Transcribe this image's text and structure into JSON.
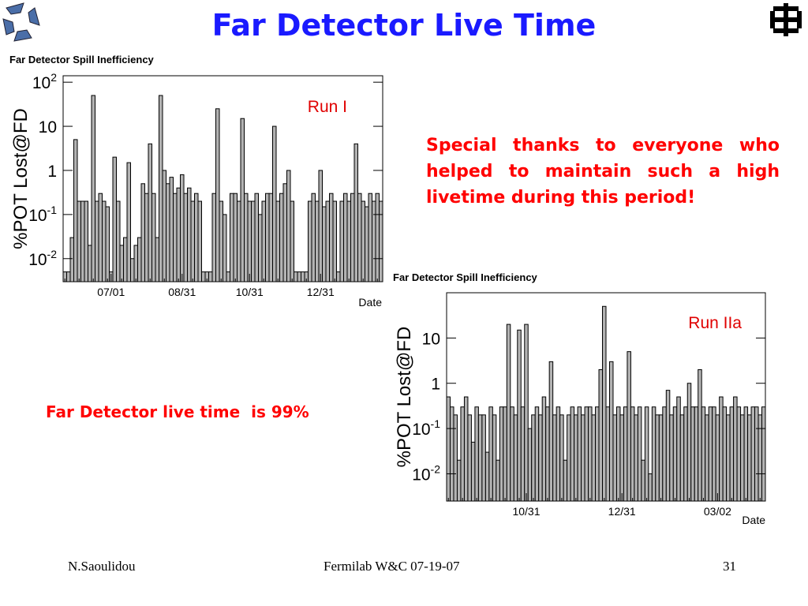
{
  "header": {
    "title": "Far Detector Live Time"
  },
  "notes": {
    "thanks": "Special thanks to everyone who helped to maintain such a high livetime during this period!",
    "livetime": "Far Detector live time  is 99%"
  },
  "footer": {
    "author": "N.Saoulidou",
    "event": "Fermilab W&C  07-19-07",
    "page": "31"
  },
  "chart_data": [
    {
      "type": "bar",
      "title": "Far Detector Spill Inefficiency",
      "y_label": "%POT Lost@FD",
      "x_label": "Date",
      "annotation": "Run I",
      "log_y": true,
      "color": "#b3b3b3",
      "ylim": [
        0.003,
        140
      ],
      "yticks": [
        {
          "value": 0.01,
          "label": "10",
          "sup": "-2"
        },
        {
          "value": 0.1,
          "label": "10",
          "sup": "-1"
        },
        1,
        10,
        {
          "value": 100,
          "label": "10",
          "sup": "2"
        }
      ],
      "categories": [
        null,
        null,
        null,
        null,
        null,
        null,
        null,
        null,
        null,
        null,
        null,
        null,
        null,
        "07/01",
        null,
        null,
        null,
        null,
        null,
        null,
        null,
        null,
        null,
        null,
        null,
        null,
        null,
        null,
        null,
        null,
        null,
        null,
        null,
        "08/31",
        null,
        null,
        null,
        null,
        null,
        null,
        null,
        null,
        null,
        null,
        null,
        null,
        null,
        null,
        null,
        null,
        null,
        null,
        "10/31",
        null,
        null,
        null,
        null,
        null,
        null,
        null,
        null,
        null,
        null,
        null,
        null,
        null,
        null,
        null,
        null,
        null,
        null,
        null,
        "12/31",
        null,
        null,
        null,
        null,
        null,
        null,
        null,
        null,
        null,
        null,
        null,
        null,
        null,
        null,
        null,
        null,
        null
      ],
      "values": [
        0.005,
        0.005,
        0.03,
        5,
        0.2,
        0.2,
        0.2,
        0.02,
        50,
        0.2,
        0.3,
        0.2,
        0.15,
        0.005,
        2,
        0.2,
        0.02,
        0.03,
        1.5,
        0.01,
        0.02,
        0.03,
        0.5,
        0.3,
        4,
        0.3,
        0.03,
        50,
        1,
        0.5,
        0.7,
        0.3,
        0.4,
        0.8,
        0.3,
        0.4,
        0.2,
        0.3,
        0.2,
        0.005,
        0.005,
        0.005,
        0.3,
        25,
        0.2,
        0.1,
        0.005,
        0.3,
        0.3,
        0.2,
        15,
        0.3,
        0.2,
        0.2,
        0.3,
        0.1,
        0.2,
        0.3,
        0.3,
        10,
        0.2,
        0.3,
        0.5,
        1,
        0.2,
        0.005,
        0.005,
        0.005,
        0.005,
        0.2,
        0.3,
        0.2,
        1,
        0.15,
        0.2,
        0.3,
        0.2,
        0.005,
        0.2,
        0.3,
        0.2,
        0.3,
        4,
        0.3,
        0.2,
        0.15,
        0.3,
        0.2,
        0.3,
        0.2
      ]
    },
    {
      "type": "bar",
      "title": "Far Detector Spill Inefficiency",
      "y_label": "%POT Lost@FD",
      "x_label": "Date",
      "annotation": "Run IIa",
      "log_y": true,
      "color": "#b3b3b3",
      "ylim": [
        0.0025,
        100
      ],
      "yticks": [
        {
          "value": 0.01,
          "label": "10",
          "sup": "-2"
        },
        {
          "value": 0.1,
          "label": "10",
          "sup": "-1"
        },
        1,
        10
      ],
      "categories": [
        null,
        null,
        null,
        null,
        null,
        null,
        null,
        null,
        null,
        null,
        null,
        null,
        null,
        null,
        null,
        null,
        null,
        null,
        null,
        null,
        null,
        null,
        "10/31",
        null,
        null,
        null,
        null,
        null,
        null,
        null,
        null,
        null,
        null,
        null,
        null,
        null,
        null,
        null,
        null,
        null,
        null,
        null,
        null,
        null,
        null,
        null,
        null,
        null,
        null,
        "12/31",
        null,
        null,
        null,
        null,
        null,
        null,
        null,
        null,
        null,
        null,
        null,
        null,
        null,
        null,
        null,
        null,
        null,
        null,
        null,
        null,
        null,
        null,
        null,
        null,
        null,
        null,
        "03/02",
        null,
        null,
        null,
        null,
        null,
        null,
        null,
        null,
        null,
        null,
        null,
        null,
        null
      ],
      "values": [
        0.5,
        0.3,
        0.2,
        0.02,
        0.3,
        0.5,
        0.2,
        0.05,
        0.3,
        0.2,
        0.2,
        0.03,
        0.3,
        0.2,
        0.02,
        0.3,
        0.3,
        20,
        0.3,
        0.2,
        15,
        0.3,
        20,
        0.1,
        0.2,
        0.3,
        0.2,
        0.5,
        0.3,
        3,
        0.2,
        0.3,
        0.2,
        0.02,
        0.2,
        0.3,
        0.2,
        0.3,
        0.2,
        0.3,
        0.3,
        0.2,
        0.3,
        2,
        50,
        0.3,
        3,
        0.2,
        0.3,
        0.2,
        0.3,
        5,
        0.3,
        0.2,
        0.3,
        0.02,
        0.3,
        0.01,
        0.3,
        0.2,
        0.2,
        0.3,
        0.7,
        0.2,
        0.3,
        0.5,
        0.2,
        0.3,
        1,
        0.3,
        0.3,
        2,
        0.3,
        0.2,
        0.3,
        0.3,
        0.2,
        0.5,
        0.3,
        0.2,
        0.3,
        0.5,
        0.3,
        0.2,
        0.3,
        0.2,
        0.3,
        0.3,
        0.2,
        0.3
      ]
    }
  ]
}
